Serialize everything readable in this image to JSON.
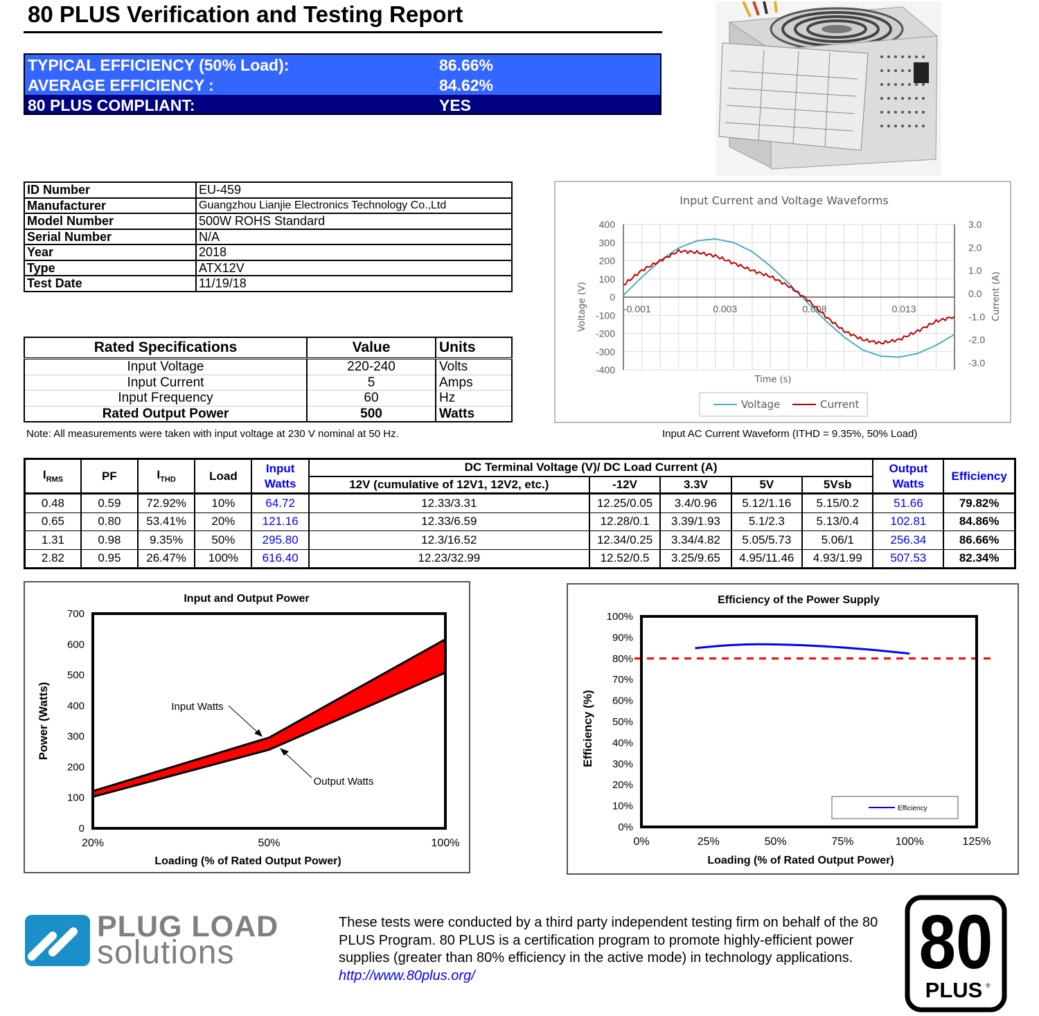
{
  "header": {
    "title": "80 PLUS Verification and Testing Report"
  },
  "summary": [
    {
      "label": "TYPICAL EFFICIENCY (50% Load):",
      "value": "86.66%",
      "color": "#3366ff"
    },
    {
      "label": "AVERAGE EFFICIENCY :",
      "value": "84.62%",
      "color": "#3366ff"
    },
    {
      "label": "80 PLUS COMPLIANT:",
      "value": "YES",
      "color": "#000080"
    }
  ],
  "info": [
    {
      "key": "ID Number",
      "value": "EU-459"
    },
    {
      "key": "Manufacturer",
      "value": "Guangzhou Lianjie Electronics Technology Co.,Ltd"
    },
    {
      "key": "Model Number",
      "value": "500W ROHS Standard"
    },
    {
      "key": "Serial Number",
      "value": "N/A"
    },
    {
      "key": "Year",
      "value": "2018"
    },
    {
      "key": "Type",
      "value": "ATX12V"
    },
    {
      "key": "Test Date",
      "value": "11/19/18"
    }
  ],
  "specs": {
    "headers": [
      "Rated Specifications",
      "Value",
      "Units"
    ],
    "rows": [
      [
        "Input Voltage",
        "220-240",
        "Volts"
      ],
      [
        "Input Current",
        "5",
        "Amps"
      ],
      [
        "Input Frequency",
        "60",
        "Hz"
      ],
      [
        "Rated Output Power",
        "500",
        "Watts"
      ]
    ],
    "note": "Note: All measurements were taken with input voltage at 230 V nominal at 50 Hz."
  },
  "wave_caption": "Input AC Current Waveform (ITHD = 9.35%, 50% Load)",
  "data_table": {
    "headers": {
      "irms": "I",
      "irms_sub": "RMS",
      "pf": "PF",
      "ithd": "I",
      "ithd_sub": "THD",
      "load": "Load",
      "input_watts_1": "Input",
      "input_watts_2": "Watts",
      "dc_group": "DC Terminal Voltage (V)/ DC Load Current (A)",
      "v12": "12V (cumulative of 12V1, 12V2, etc.)",
      "vm12": "-12V",
      "v33": "3.3V",
      "v5": "5V",
      "v5sb": "5Vsb",
      "output_watts_1": "Output",
      "output_watts_2": "Watts",
      "efficiency": "Efficiency"
    },
    "rows": [
      [
        "0.48",
        "0.59",
        "72.92%",
        "10%",
        "64.72",
        "12.33/3.31",
        "12.25/0.05",
        "3.4/0.96",
        "5.12/1.16",
        "5.15/0.2",
        "51.66",
        "79.82%"
      ],
      [
        "0.65",
        "0.80",
        "53.41%",
        "20%",
        "121.16",
        "12.33/6.59",
        "12.28/0.1",
        "3.39/1.93",
        "5.1/2.3",
        "5.13/0.4",
        "102.81",
        "84.86%"
      ],
      [
        "1.31",
        "0.98",
        "9.35%",
        "50%",
        "295.80",
        "12.3/16.52",
        "12.34/0.25",
        "3.34/4.82",
        "5.05/5.73",
        "5.06/1",
        "256.34",
        "86.66%"
      ],
      [
        "2.82",
        "0.95",
        "26.47%",
        "100%",
        "616.40",
        "12.23/32.99",
        "12.52/0.5",
        "3.25/9.65",
        "4.95/11.46",
        "4.93/1.99",
        "507.53",
        "82.34%"
      ]
    ]
  },
  "chart_data": [
    {
      "type": "line",
      "title": "Input Current and Voltage Waveforms",
      "xlabel": "Time (s)",
      "ylabel": "Voltage (V)",
      "y2label": "Current (A)",
      "xticks": [
        "-0.001",
        "0.003",
        "0.008",
        "0.013"
      ],
      "yticks": [
        "400",
        "300",
        "200",
        "100",
        "0",
        "-100",
        "-200",
        "-300",
        "-400"
      ],
      "y2ticks": [
        "3.0",
        "2.0",
        "1.0",
        "0.0",
        "-1.0",
        "-2.0",
        "-3.0"
      ],
      "ylim": [
        -400,
        400
      ],
      "y2lim": [
        -3,
        3
      ],
      "xlim": [
        -0.001,
        0.017
      ],
      "legend_position": "bottom",
      "series": [
        {
          "name": "Voltage",
          "color": "#4bacc6",
          "axis": "left",
          "x": [
            -0.001,
            0.0,
            0.001,
            0.002,
            0.003,
            0.004,
            0.005,
            0.006,
            0.007,
            0.008,
            0.009,
            0.01,
            0.011,
            0.012,
            0.013,
            0.014,
            0.015,
            0.016,
            0.017
          ],
          "y": [
            10,
            110,
            200,
            270,
            310,
            320,
            300,
            250,
            170,
            75,
            -30,
            -130,
            -220,
            -290,
            -325,
            -330,
            -310,
            -265,
            -205
          ]
        },
        {
          "name": "Current",
          "color": "#c00000",
          "axis": "right",
          "x": [
            -0.001,
            0.0,
            0.001,
            0.002,
            0.003,
            0.004,
            0.005,
            0.006,
            0.007,
            0.008,
            0.009,
            0.01,
            0.011,
            0.012,
            0.013,
            0.014,
            0.015,
            0.016,
            0.017
          ],
          "y": [
            0.5,
            1.1,
            1.5,
            1.9,
            1.85,
            1.7,
            1.4,
            1.1,
            0.85,
            0.45,
            -0.1,
            -0.8,
            -1.4,
            -1.75,
            -1.9,
            -1.75,
            -1.4,
            -1.0,
            -0.8
          ]
        }
      ]
    },
    {
      "type": "area",
      "title": "Input and Output Power",
      "xlabel": "Loading (% of Rated Output Power)",
      "ylabel": "Power (Watts)",
      "categories": [
        "20%",
        "50%",
        "100%"
      ],
      "yticks": [
        "0",
        "100",
        "200",
        "300",
        "400",
        "500",
        "600",
        "700"
      ],
      "ylim": [
        0,
        700
      ],
      "annotations": [
        "Input Watts",
        "Output Watts"
      ],
      "fill_color": "#ff0000",
      "series": [
        {
          "name": "Input Watts",
          "values": [
            121.16,
            295.8,
            616.4
          ]
        },
        {
          "name": "Output Watts",
          "values": [
            102.81,
            256.34,
            507.53
          ]
        }
      ]
    },
    {
      "type": "line",
      "title": "Efficiency of the Power Supply",
      "xlabel": "Loading (% of Rated Output Power)",
      "ylabel": "Efficiency (%)",
      "xticks": [
        "0%",
        "25%",
        "50%",
        "75%",
        "100%",
        "125%"
      ],
      "yticks": [
        "0%",
        "10%",
        "20%",
        "30%",
        "40%",
        "50%",
        "60%",
        "70%",
        "80%",
        "90%",
        "100%"
      ],
      "xlim": [
        0,
        125
      ],
      "ylim": [
        0,
        100
      ],
      "legend_position": "bottom-right",
      "reference_line": {
        "y": 80,
        "color": "#ff0000",
        "style": "dashed"
      },
      "series": [
        {
          "name": "Efficiency",
          "color": "#0000ff",
          "x": [
            20,
            50,
            100
          ],
          "y": [
            84.86,
            86.66,
            82.34
          ]
        }
      ]
    }
  ],
  "footer": {
    "logo_line1": "PLUG LOAD",
    "logo_line2": "solutions",
    "text": "These tests were conducted by a third party independent testing firm on behalf of the 80 PLUS Program. 80 PLUS is a certification program to promote highly-efficient power supplies (greater than 80% efficiency in the active mode) in technology applications.",
    "link": "http://www.80plus.org/",
    "badge_number": "80",
    "badge_text": "PLUS"
  }
}
